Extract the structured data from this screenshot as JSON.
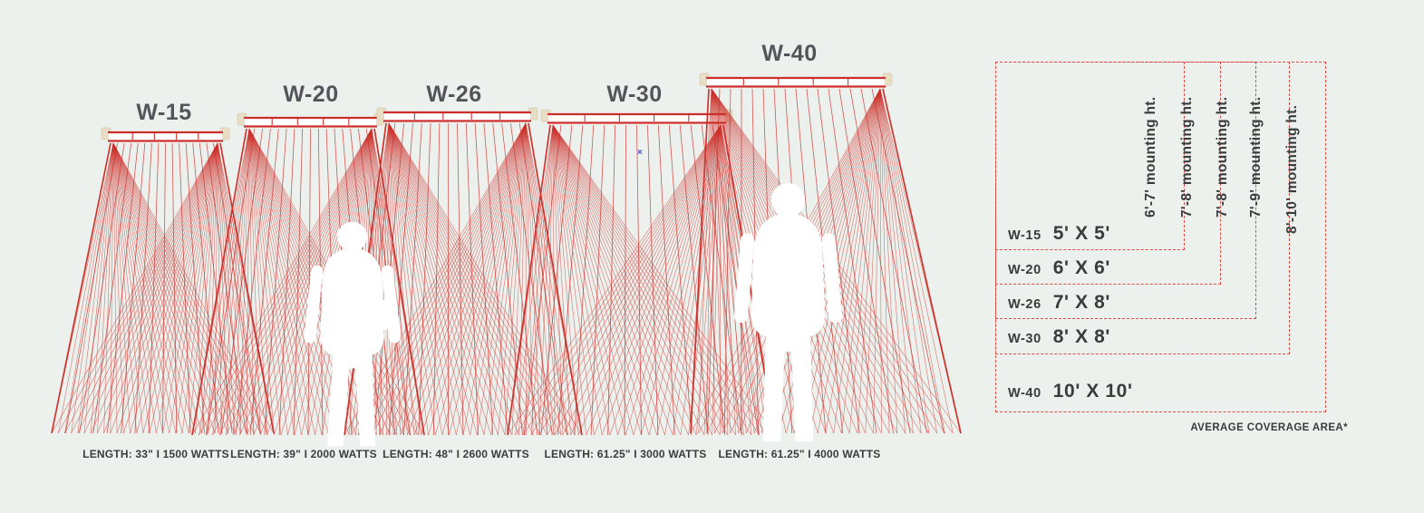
{
  "colors": {
    "background": "#edf1ee",
    "ray_red": "#cc2f2a",
    "dash_red": "#dd4b43",
    "text_dark": "#3a3b3d",
    "cap_beige": "#e9ddc6"
  },
  "heaters": [
    {
      "model": "W-15",
      "spec": "LENGTH: 33\" I 1500 WATTS",
      "coverage": "5' X 5'",
      "mounting": "6'-7' mounting ht."
    },
    {
      "model": "W-20",
      "spec": "LENGTH: 39\" I 2000 WATTS",
      "coverage": "6' X 6'",
      "mounting": "7'-8' mounting ht."
    },
    {
      "model": "W-26",
      "spec": "LENGTH: 48\" I 2600 WATTS",
      "coverage": "7' X 8'",
      "mounting": "7'-8' mounting ht."
    },
    {
      "model": "W-30",
      "spec": "LENGTH: 61.25\" I 3000 WATTS",
      "coverage": "8' X 8'",
      "mounting": "7'-9' mounting ht."
    },
    {
      "model": "W-40",
      "spec": "LENGTH: 61.25\" I 4000 WATTS",
      "coverage": "10' X 10'",
      "mounting": "8'-10' mounting ht."
    }
  ],
  "table_footnote": "AVERAGE COVERAGE AREA*",
  "stray_marker": "×"
}
